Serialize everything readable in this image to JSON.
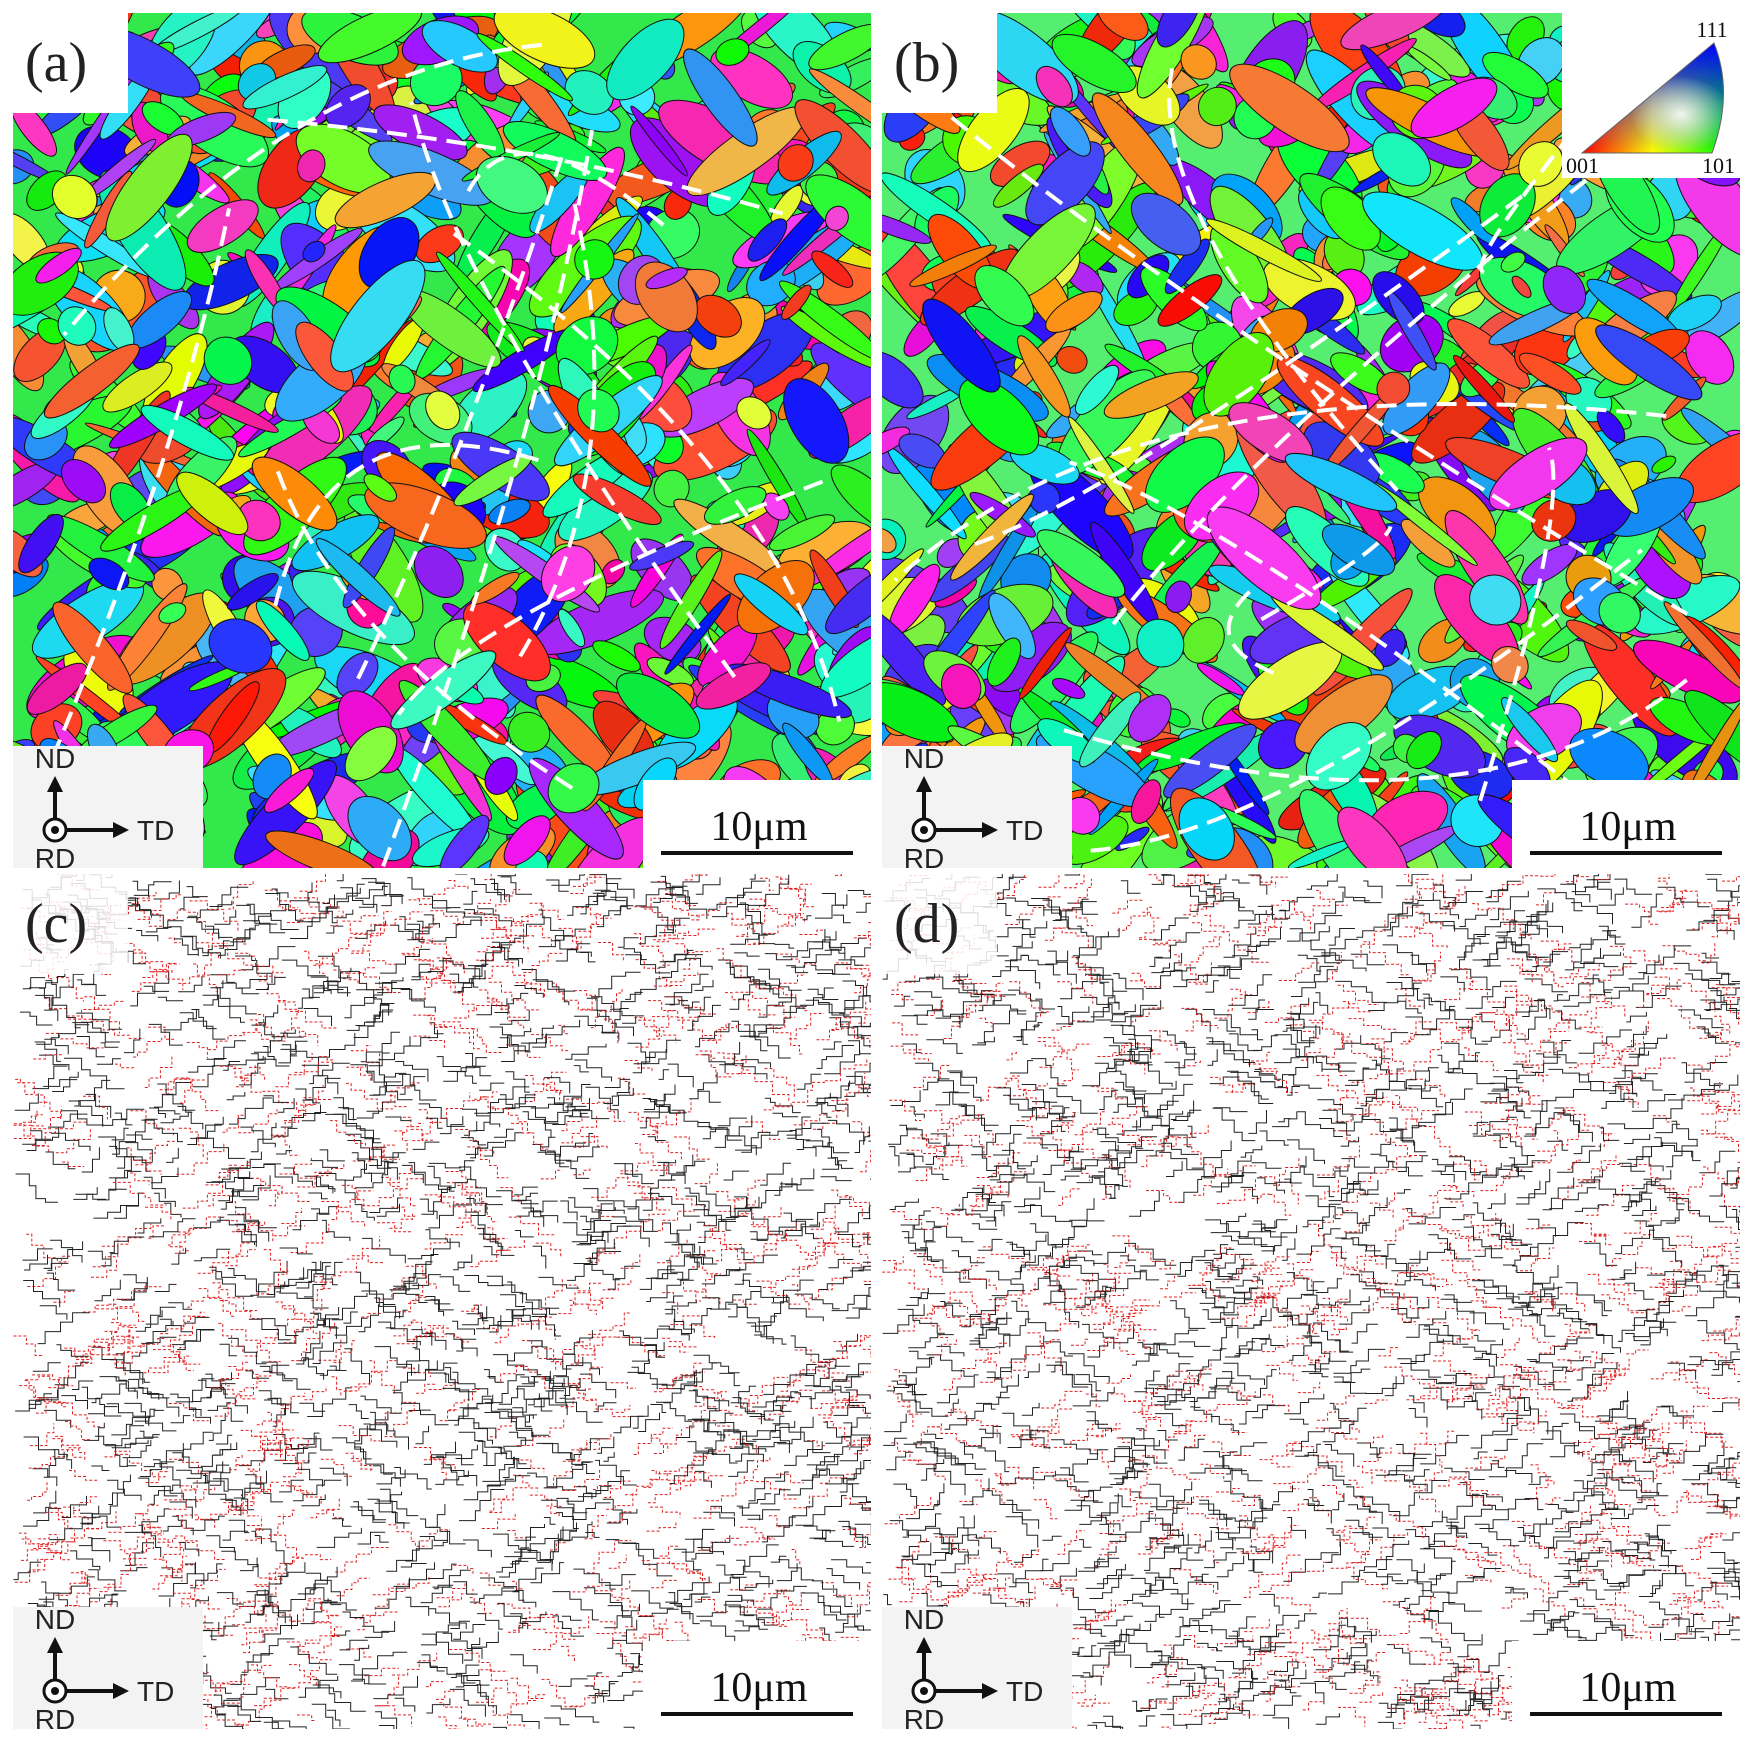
{
  "panels": [
    {
      "label": "(a)",
      "scale_bar": "10μm",
      "axes": {
        "up": "ND",
        "right": "TD",
        "out": "RD"
      }
    },
    {
      "label": "(b)",
      "scale_bar": "10μm",
      "axes": {
        "up": "ND",
        "right": "TD",
        "out": "RD"
      }
    },
    {
      "label": "(c)",
      "scale_bar": "10μm",
      "axes": {
        "up": "ND",
        "right": "TD",
        "out": "RD"
      }
    },
    {
      "label": "(d)",
      "scale_bar": "10μm",
      "axes": {
        "up": "ND",
        "right": "TD",
        "out": "RD"
      }
    }
  ],
  "ipf_legend": {
    "top": "111",
    "bottom_left": "001",
    "bottom_right": "101"
  }
}
